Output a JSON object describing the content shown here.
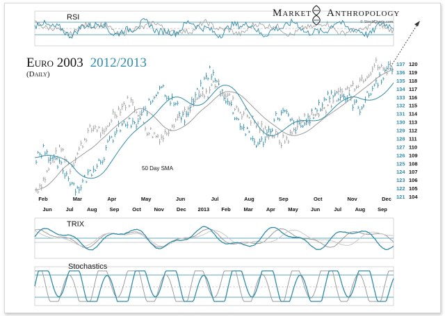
{
  "header": {
    "brand_word1": "Market",
    "brand_word2": "Anthropology",
    "credit": "© StockCharts.com"
  },
  "chart_data": {
    "type": "line",
    "title": "Euro 2003",
    "title_highlight": "2012/2013",
    "subtitle": "(Daily)",
    "annotation": "50 Day SMA",
    "axis_top_labels": [
      "Feb",
      "Mar",
      "Apr",
      "May",
      "Jun",
      "Jul",
      "Aug",
      "Sep",
      "Oct",
      "Nov",
      "Dec"
    ],
    "axis_bottom_labels": [
      "Jun",
      "Jul",
      "Aug",
      "Sep",
      "Oct",
      "Nov",
      "Dec",
      "2013",
      "Feb",
      "Mar",
      "Apr",
      "May",
      "Jun",
      "Jul",
      "Aug",
      "Sep"
    ],
    "y_left_ticks": [
      137,
      136,
      135,
      134,
      133,
      132,
      131,
      130,
      129,
      128,
      127,
      126,
      125,
      124,
      123,
      122,
      121
    ],
    "y_right_ticks": [
      120,
      119,
      118,
      117,
      116,
      115,
      114,
      113,
      112,
      111,
      110,
      109,
      108,
      107,
      106,
      105,
      104
    ],
    "ylim_left": [
      121,
      137
    ],
    "ylim_right": [
      104,
      120
    ],
    "series_2003": [
      121.8,
      123.2,
      125.5,
      126.8,
      124.5,
      126.5,
      128.6,
      129.5,
      128.2,
      130.9,
      131.8,
      132.6,
      131.4,
      129.2,
      128.4,
      128.2,
      129.9,
      130.8,
      131.1,
      132.9,
      133.1,
      134.8,
      133.8,
      132.6,
      131.4,
      130.8,
      129.6,
      128.9,
      128.5,
      127.6,
      128.3,
      129.9,
      130.5,
      130.9,
      131.7,
      132.6,
      133.5,
      134.1,
      134.9,
      135.8,
      137.0,
      136.2,
      136.8
    ],
    "series_2012_2013": [
      125.7,
      127.0,
      125.2,
      124.6,
      123.2,
      121.9,
      123.2,
      124.7,
      125.7,
      127.8,
      129.2,
      129.9,
      129.5,
      131.1,
      132.6,
      134.6,
      133.1,
      131.8,
      130.3,
      132.6,
      134.2,
      136.3,
      134.3,
      132.8,
      130.9,
      129.2,
      128.0,
      127.2,
      128.7,
      130.6,
      131.1,
      129.7,
      129.3,
      130.5,
      131.5,
      133.0,
      133.5,
      133.2,
      132.6,
      131.6,
      133.0,
      134.7,
      135.8,
      136.7
    ],
    "panels": [
      "RSI",
      "TRIX",
      "Stochastics"
    ]
  },
  "colors": {
    "accent": "#2e8aa8",
    "series_2003": "#9a9a9a",
    "series_2012_2013": "#2e8aa8",
    "text": "#111111"
  }
}
